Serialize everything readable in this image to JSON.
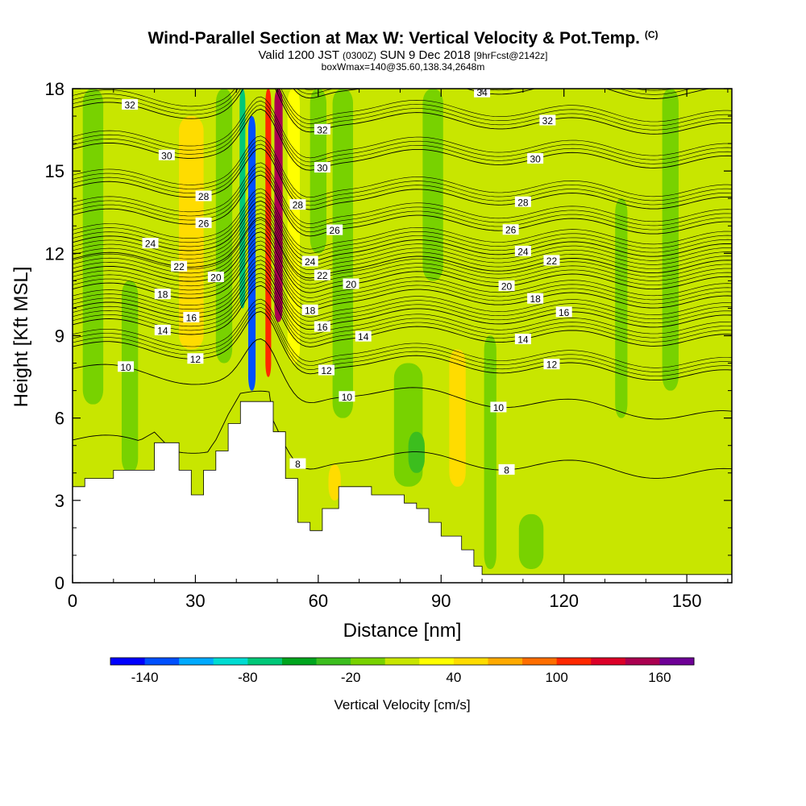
{
  "header": {
    "title": "Wind-Parallel Section at Max W: Vertical Velocity & Pot.Temp.",
    "title_mark": "(C)",
    "valid_prefix": "Valid 1200 JST",
    "valid_utc": "(0300Z)",
    "valid_date": "SUN 9 Dec 2018",
    "forecast": "[9hrFcst@2142z]",
    "box_info": "boxWmax=140@35.60,138.34,2648m"
  },
  "chart_data": {
    "type": "heatmap",
    "title": "Wind-Parallel Section at Max W: Vertical Velocity & Pot.Temp.",
    "xlabel": "Distance [nm]",
    "ylabel": "Height [Kft MSL]",
    "xlim": [
      0,
      161
    ],
    "ylim": [
      0,
      18
    ],
    "x_ticks": [
      0,
      30,
      60,
      90,
      120,
      150
    ],
    "y_ticks": [
      0,
      3,
      6,
      9,
      12,
      15,
      18
    ],
    "colorbar": {
      "label": "Vertical Velocity [cm/s]",
      "tick_labels": [
        "-140",
        "-80",
        "-20",
        "40",
        "100",
        "160"
      ],
      "tick_values": [
        -140,
        -80,
        -20,
        40,
        100,
        160
      ],
      "levels": [
        -160,
        -140,
        -120,
        -100,
        -80,
        -60,
        -40,
        -20,
        0,
        20,
        40,
        60,
        80,
        100,
        120,
        140,
        160,
        180
      ],
      "colors": [
        "#0000ff",
        "#0050ff",
        "#00aaff",
        "#00dcd2",
        "#00c878",
        "#00a51e",
        "#3cbe1e",
        "#78d200",
        "#c8e600",
        "#ffff00",
        "#ffdc00",
        "#ffaa00",
        "#ff6e00",
        "#ff2800",
        "#dc0028",
        "#aa0050",
        "#6e0096"
      ]
    },
    "terrain": [
      [
        0,
        3.5
      ],
      [
        3,
        3.8
      ],
      [
        10,
        4.1
      ],
      [
        20,
        5.1
      ],
      [
        26,
        4.1
      ],
      [
        29,
        3.2
      ],
      [
        32,
        4.1
      ],
      [
        35,
        4.8
      ],
      [
        38,
        5.8
      ],
      [
        41,
        6.6
      ],
      [
        48,
        6.6
      ],
      [
        49,
        5.5
      ],
      [
        52,
        3.8
      ],
      [
        55,
        2.2
      ],
      [
        58,
        1.9
      ],
      [
        61,
        2.7
      ],
      [
        65,
        3.5
      ],
      [
        73,
        3.2
      ],
      [
        81,
        2.9
      ],
      [
        84,
        2.7
      ],
      [
        87,
        2.2
      ],
      [
        90,
        1.7
      ],
      [
        95,
        1.2
      ],
      [
        98,
        0.6
      ],
      [
        100,
        0.3
      ],
      [
        161,
        0.3
      ]
    ],
    "wind_bands": [
      {
        "x": 5,
        "w": 5,
        "v": -10,
        "y0": 6.5,
        "y1": 18
      },
      {
        "x": 14,
        "w": 4,
        "v": -10,
        "y0": 4,
        "y1": 11
      },
      {
        "x": 29,
        "w": 6,
        "v": 40,
        "y0": 8.5,
        "y1": 17
      },
      {
        "x": 37,
        "w": 4,
        "v": -10,
        "y0": 8,
        "y1": 18
      },
      {
        "x": 41.5,
        "w": 1.4,
        "v": -80,
        "y0": 10,
        "y1": 18
      },
      {
        "x": 43.8,
        "w": 1.8,
        "v": -130,
        "y0": 7,
        "y1": 17
      },
      {
        "x": 47.8,
        "w": 1.4,
        "v": 100,
        "y0": 7.5,
        "y1": 18
      },
      {
        "x": 50.3,
        "w": 2.0,
        "v": 150,
        "y0": 9.5,
        "y1": 18
      },
      {
        "x": 54,
        "w": 3,
        "v": 30,
        "y0": 8,
        "y1": 18
      },
      {
        "x": 60,
        "w": 4,
        "v": -10,
        "y0": 12,
        "y1": 18
      },
      {
        "x": 66,
        "w": 5,
        "v": -20,
        "y0": 6,
        "y1": 18
      },
      {
        "x": 64,
        "w": 3,
        "v": 40,
        "y0": 3,
        "y1": 4.3
      },
      {
        "x": 82,
        "w": 7,
        "v": -20,
        "y0": 3.5,
        "y1": 8
      },
      {
        "x": 84,
        "w": 4,
        "v": -40,
        "y0": 4,
        "y1": 5.5
      },
      {
        "x": 88,
        "w": 5,
        "v": -10,
        "y0": 11,
        "y1": 18
      },
      {
        "x": 94,
        "w": 4,
        "v": 40,
        "y0": 3.5,
        "y1": 8.5
      },
      {
        "x": 102,
        "w": 3,
        "v": -10,
        "y0": 0.5,
        "y1": 9
      },
      {
        "x": 125,
        "w": 8,
        "v": 10,
        "y0": 0.5,
        "y1": 18
      },
      {
        "x": 146,
        "w": 4,
        "v": -10,
        "y0": 7,
        "y1": 18
      },
      {
        "x": 134,
        "w": 3,
        "v": -10,
        "y0": 6,
        "y1": 14
      },
      {
        "x": 112,
        "w": 6,
        "v": -10,
        "y0": 0.5,
        "y1": 2.5
      }
    ],
    "theta_contours": [
      {
        "value": 8,
        "y_left": 5.2,
        "y_right": 3.9,
        "label_x": 55,
        "label_x2": 106
      },
      {
        "value": 10,
        "y_left": 7.8,
        "y_right": 6.0,
        "label_x": 13,
        "label_x2": 67,
        "label_x3": 104
      },
      {
        "value": 12,
        "y_left": 8.6,
        "y_right": 7.5,
        "label_x": 30,
        "label_x2": 62,
        "label_x3": 117
      },
      {
        "value": 14,
        "y_left": 9.4,
        "y_right": 8.8,
        "label_x": 22,
        "label_x2": 71,
        "label_x3": 110
      },
      {
        "value": 16,
        "y_left": 10.0,
        "y_right": 9.5,
        "label_x": 29,
        "label_x2": 61,
        "label_x3": 120
      },
      {
        "value": 18,
        "y_left": 10.7,
        "y_right": 10.2,
        "label_x": 22,
        "label_x2": 58,
        "label_x3": 113
      },
      {
        "value": 20,
        "y_left": 11.3,
        "y_right": 10.9,
        "label_x": 35,
        "label_x2": 68,
        "label_x3": 106
      },
      {
        "value": 22,
        "y_left": 11.8,
        "y_right": 11.5,
        "label_x": 26,
        "label_x2": 61,
        "label_x3": 117
      },
      {
        "value": 24,
        "y_left": 12.4,
        "y_right": 12.1,
        "label_x": 19,
        "label_x2": 58,
        "label_x3": 110
      },
      {
        "value": 26,
        "y_left": 13.4,
        "y_right": 12.9,
        "label_x": 32,
        "label_x2": 64,
        "label_x3": 107
      },
      {
        "value": 28,
        "y_left": 14.4,
        "y_right": 13.8,
        "label_x": 32,
        "label_x2": 55,
        "label_x3": 110
      },
      {
        "value": 30,
        "y_left": 15.8,
        "y_right": 15.3,
        "label_x": 23,
        "label_x2": 61,
        "label_x3": 113
      },
      {
        "value": 32,
        "y_left": 17.3,
        "y_right": 16.5,
        "label_x": 14,
        "label_x2": 61,
        "label_x3": 116
      },
      {
        "value": 34,
        "y_left": 18.5,
        "y_right": 17.8,
        "label_x": 100
      }
    ]
  }
}
